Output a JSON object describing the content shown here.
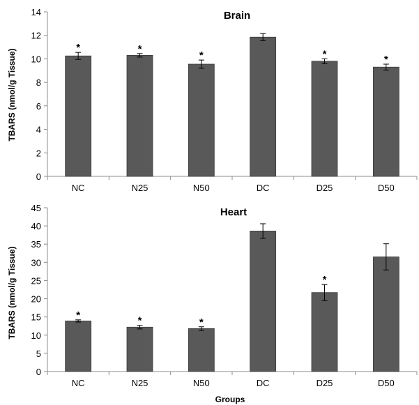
{
  "chart_data": [
    {
      "type": "bar",
      "title": "Brain",
      "xlabel": "",
      "ylabel": "TBARS (nmol/g Tissue)",
      "categories": [
        "NC",
        "N25",
        "N50",
        "DC",
        "D25",
        "D50"
      ],
      "values": [
        10.25,
        10.3,
        9.55,
        11.85,
        9.8,
        9.3
      ],
      "errors": [
        0.3,
        0.15,
        0.35,
        0.3,
        0.2,
        0.25
      ],
      "significance": [
        "*",
        "*",
        "*",
        "",
        "*",
        "*"
      ],
      "ylim": [
        0,
        14
      ],
      "yticks": [
        0,
        2,
        4,
        6,
        8,
        10,
        12,
        14
      ],
      "ytick_labels": [
        "0",
        "2",
        "4",
        "6",
        "8",
        "10",
        "12",
        "14"
      ],
      "grid": false,
      "bar_color": "#595959"
    },
    {
      "type": "bar",
      "title": "Heart",
      "xlabel": "Groups",
      "ylabel": "TBARS (nmol/g Tissue)",
      "categories": [
        "NC",
        "N25",
        "N50",
        "DC",
        "D25",
        "D50"
      ],
      "values": [
        13.9,
        12.2,
        11.8,
        38.6,
        21.7,
        31.5
      ],
      "errors": [
        0.3,
        0.5,
        0.5,
        2.0,
        2.2,
        3.6
      ],
      "significance": [
        "*",
        "*",
        "*",
        "",
        "*",
        ""
      ],
      "ylim": [
        0,
        45
      ],
      "yticks": [
        0,
        5,
        10,
        15,
        20,
        25,
        30,
        35,
        40,
        45
      ],
      "ytick_labels": [
        "0",
        "5",
        "10",
        "15",
        "20",
        "25",
        "30",
        "35",
        "40",
        "45"
      ],
      "grid": false,
      "bar_color": "#595959"
    }
  ]
}
